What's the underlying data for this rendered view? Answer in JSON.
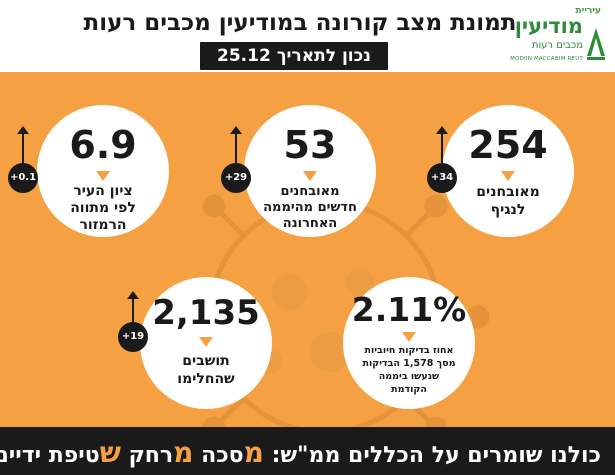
{
  "header": {
    "title": "תמונת מצב קורונה במודיעין מכבים רעות",
    "date": "נכון לתאריך 25.12"
  },
  "logo": {
    "small": "עיריית",
    "main": "מודיעין",
    "sub": "מכבים רעות",
    "en": "MODIIN MACCABIM REUT"
  },
  "stats": [
    {
      "value": "254",
      "delta": "+34",
      "label_lines": [
        "מאובחנים",
        "לנגיף"
      ]
    },
    {
      "value": "53",
      "delta": "+29",
      "label_lines": [
        "מאובחנים",
        "חדשים מהיממה",
        "האחרונה"
      ]
    },
    {
      "value": "6.9",
      "delta": "+0.1",
      "label_lines": [
        "ציון העיר",
        "לפי מתווה",
        "הרמזור"
      ]
    },
    {
      "value": "2.11%",
      "delta": "",
      "label_lines": [
        "אחוז בדיקות חיוביות",
        "מסך 1,578 הבדיקות",
        "שנעשו ביממה",
        "הקודמת"
      ]
    },
    {
      "value": "2,135",
      "delta": "+19",
      "label_lines": [
        "תושבים",
        "שהחלימו"
      ]
    }
  ],
  "footer": {
    "prefix": "כולנו שומרים על הכללים ממ\"ש:",
    "m1": "מ",
    "w1": "סכה",
    "m2": "מ",
    "w2": "רחק",
    "s": "ש",
    "w3": "טיפת ידיים"
  },
  "colors": {
    "accent": "#f4a043",
    "dark": "#1a1a1a",
    "brand_green": "#2e8b3a"
  }
}
